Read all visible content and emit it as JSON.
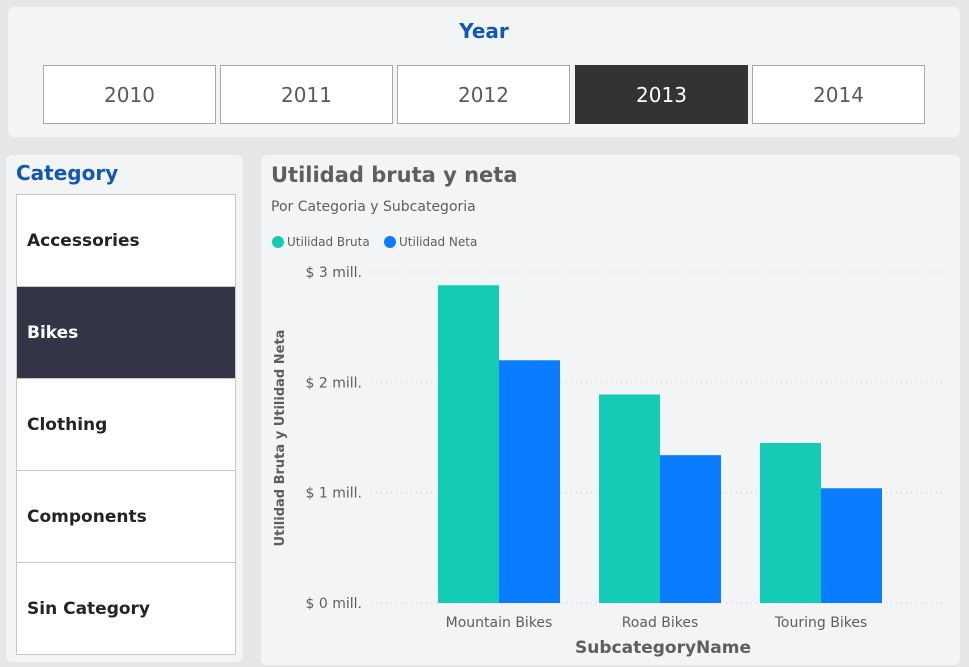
{
  "year_slicer": {
    "title": "Year",
    "options": [
      "2010",
      "2011",
      "2012",
      "2013",
      "2014"
    ],
    "selected": "2013"
  },
  "category_slicer": {
    "title": "Category",
    "options": [
      "Accessories",
      "Bikes",
      "Clothing",
      "Components",
      "Sin Category"
    ],
    "selected": "Bikes"
  },
  "colors": {
    "bruta": "#14cbb5",
    "neta": "#0a7cff",
    "accent": "#1158b4",
    "selected_year": "#333333",
    "selected_category": "#333446"
  },
  "chart_data": {
    "type": "bar",
    "title": "Utilidad bruta y neta",
    "subtitle": "Por Categoria y Subcategoria",
    "xlabel": "SubcategoryName",
    "ylabel": "Utilidad Bruta y Utilidad Neta",
    "categories": [
      "Mountain Bikes",
      "Road Bikes",
      "Touring Bikes"
    ],
    "series": [
      {
        "name": "Utilidad Bruta",
        "values": [
          2.88,
          1.89,
          1.45
        ]
      },
      {
        "name": "Utilidad Neta",
        "values": [
          2.2,
          1.34,
          1.04
        ]
      }
    ],
    "ylim": [
      0,
      3
    ],
    "y_ticks": [
      {
        "value": 0,
        "label": "$ 0 mill."
      },
      {
        "value": 1,
        "label": "$ 1 mill."
      },
      {
        "value": 2,
        "label": "$ 2 mill."
      },
      {
        "value": 3,
        "label": "$ 3 mill."
      }
    ],
    "legend_position": "top-left",
    "grid": true
  }
}
